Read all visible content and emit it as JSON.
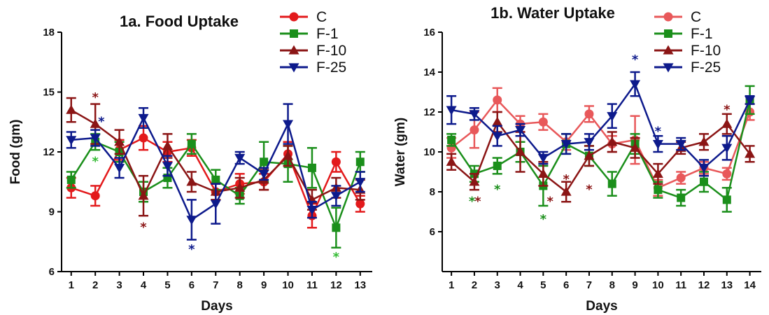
{
  "chart_data": [
    {
      "type": "line",
      "title": "1a. Food Uptake",
      "xlabel": "Days",
      "ylabel": "Food  (gm)",
      "x": [
        1,
        2,
        3,
        4,
        5,
        6,
        7,
        8,
        9,
        10,
        11,
        12,
        13
      ],
      "xlim": [
        0.6,
        13.5
      ],
      "ylim": [
        6,
        18
      ],
      "yticks": [
        6,
        9,
        12,
        15,
        18
      ],
      "legend_position": "top-right",
      "series": [
        {
          "name": "C",
          "color": "#e31a1c",
          "marker": "circle",
          "values": [
            10.2,
            9.8,
            12.1,
            12.7,
            12.0,
            12.2,
            10.0,
            10.4,
            10.5,
            11.9,
            8.8,
            11.5,
            9.4
          ],
          "errors": [
            0.5,
            0.5,
            0.5,
            0.6,
            0.5,
            0.4,
            0.4,
            0.5,
            0.4,
            0.6,
            0.6,
            0.5,
            0.4
          ]
        },
        {
          "name": "F-1",
          "color": "#1b8f1b",
          "marker": "square",
          "values": [
            10.6,
            12.5,
            12.0,
            10.0,
            10.7,
            12.4,
            10.6,
            9.8,
            11.5,
            11.4,
            11.2,
            8.2,
            11.5
          ],
          "errors": [
            0.4,
            0.4,
            0.5,
            0.5,
            0.5,
            0.5,
            0.5,
            0.4,
            1.0,
            0.9,
            1.0,
            1.0,
            0.5
          ]
        },
        {
          "name": "F-10",
          "color": "#8b1515",
          "marker": "triangle-up",
          "values": [
            14.1,
            13.4,
            12.5,
            9.8,
            12.3,
            10.5,
            10.0,
            10.2,
            10.6,
            11.8,
            9.6,
            10.2,
            10.1
          ],
          "errors": [
            0.6,
            1.0,
            0.6,
            1.0,
            0.6,
            0.5,
            0.4,
            0.5,
            0.5,
            0.5,
            0.5,
            0.5,
            0.5
          ]
        },
        {
          "name": "F-25",
          "color": "#0d1a8c",
          "marker": "triangle-down",
          "values": [
            12.6,
            12.7,
            11.2,
            13.7,
            11.3,
            8.6,
            9.4,
            11.7,
            10.9,
            13.4,
            9.1,
            9.8,
            10.5
          ],
          "errors": [
            0.4,
            0.4,
            0.5,
            0.5,
            0.5,
            1.0,
            1.0,
            0.3,
            0.3,
            1.0,
            0.4,
            0.5,
            0.5
          ]
        }
      ],
      "annotations": [
        {
          "text": "*",
          "x": 2,
          "y": 14.8,
          "color": "#8b1515"
        },
        {
          "text": "*",
          "x": 2.25,
          "y": 13.6,
          "color": "#0d1a8c"
        },
        {
          "text": "*",
          "x": 2,
          "y": 11.6,
          "color": "#33bb33"
        },
        {
          "text": "*",
          "x": 4,
          "y": 8.3,
          "color": "#8b1515"
        },
        {
          "text": "*",
          "x": 6,
          "y": 7.2,
          "color": "#0d1a8c"
        },
        {
          "text": "*",
          "x": 12,
          "y": 6.8,
          "color": "#33bb33"
        }
      ]
    },
    {
      "type": "line",
      "title": "1b. Water Uptake",
      "xlabel": "Days",
      "ylabel": "Water  (gm)",
      "x": [
        1,
        2,
        3,
        4,
        5,
        6,
        7,
        8,
        9,
        10,
        11,
        12,
        13,
        14
      ],
      "xlim": [
        0.6,
        14.5
      ],
      "ylim": [
        4,
        16
      ],
      "yticks": [
        6,
        8,
        10,
        12,
        14,
        16
      ],
      "legend_position": "top-right",
      "series": [
        {
          "name": "C",
          "color": "#e8585a",
          "marker": "circle",
          "values": [
            10.2,
            11.1,
            12.6,
            11.4,
            11.5,
            10.5,
            11.9,
            10.4,
            10.6,
            8.2,
            8.7,
            9.2,
            8.9,
            12.0
          ],
          "errors": [
            0.5,
            0.9,
            0.6,
            0.4,
            0.4,
            0.4,
            0.4,
            0.4,
            1.2,
            0.4,
            0.3,
            0.3,
            0.3,
            0.4
          ]
        },
        {
          "name": "F-1",
          "color": "#1b8f1b",
          "marker": "square",
          "values": [
            10.6,
            8.9,
            9.3,
            10.0,
            8.3,
            10.4,
            9.8,
            8.4,
            10.4,
            8.1,
            7.7,
            8.5,
            7.6,
            12.6
          ],
          "errors": [
            0.3,
            0.4,
            0.4,
            0.5,
            1.0,
            0.5,
            0.5,
            0.6,
            0.5,
            0.4,
            0.4,
            0.5,
            0.6,
            0.7
          ]
        },
        {
          "name": "F-10",
          "color": "#8b1515",
          "marker": "triangle-up",
          "values": [
            9.5,
            8.5,
            11.5,
            10.0,
            8.9,
            8.0,
            9.8,
            10.5,
            10.2,
            8.9,
            10.2,
            10.5,
            11.4,
            9.9
          ],
          "errors": [
            0.4,
            0.4,
            0.5,
            1.0,
            0.6,
            0.5,
            0.5,
            0.5,
            0.5,
            0.5,
            0.3,
            0.4,
            0.5,
            0.4
          ]
        },
        {
          "name": "F-25",
          "color": "#0d1a8c",
          "marker": "triangle-down",
          "values": [
            12.1,
            11.9,
            10.8,
            11.1,
            9.7,
            10.4,
            10.5,
            11.8,
            13.4,
            10.4,
            10.4,
            9.2,
            10.2,
            12.6
          ],
          "errors": [
            0.7,
            0.3,
            0.5,
            0.3,
            0.3,
            0.5,
            0.4,
            0.6,
            0.6,
            0.4,
            0.3,
            0.4,
            0.6,
            0.2
          ]
        }
      ],
      "annotations": [
        {
          "text": "*",
          "x": 1.9,
          "y": 7.6,
          "color": "#1b8f1b"
        },
        {
          "text": "*",
          "x": 2.15,
          "y": 7.6,
          "color": "#8b1515"
        },
        {
          "text": "*",
          "x": 3,
          "y": 8.2,
          "color": "#1b8f1b"
        },
        {
          "text": "*",
          "x": 5,
          "y": 6.7,
          "color": "#1b8f1b"
        },
        {
          "text": "*",
          "x": 5.3,
          "y": 7.6,
          "color": "#8b1515"
        },
        {
          "text": "*",
          "x": 6,
          "y": 8.7,
          "color": "#8b1515"
        },
        {
          "text": "*",
          "x": 7,
          "y": 8.2,
          "color": "#8b1515"
        },
        {
          "text": "*",
          "x": 9,
          "y": 14.7,
          "color": "#0d1a8c"
        },
        {
          "text": "*",
          "x": 10,
          "y": 11.1,
          "color": "#0d1a8c"
        },
        {
          "text": "*",
          "x": 13,
          "y": 12.2,
          "color": "#8b1515"
        }
      ]
    }
  ]
}
